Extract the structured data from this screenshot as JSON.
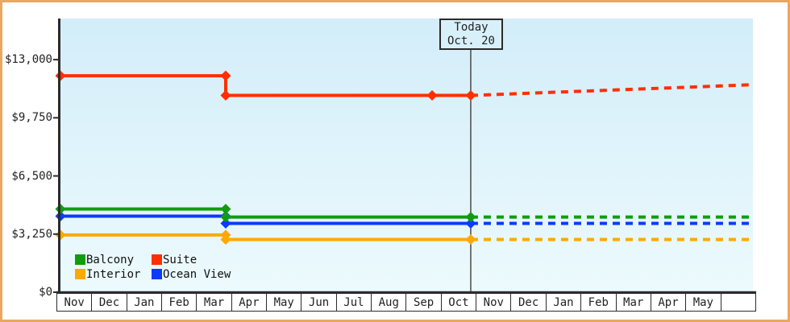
{
  "colors": {
    "page_border": "#e9a75f",
    "axis": "#2b2b2b",
    "today_line": "#4a4a4a",
    "plot_bg_top": "#d3edf9",
    "plot_bg_bottom": "#ecfafd",
    "text": "#222222",
    "today_box_bg": "#d8f0fa"
  },
  "chart_data": {
    "type": "line",
    "title": "",
    "xlabel": "",
    "ylabel": "",
    "note": "pos = horizontal fraction of plot area (0 = left edge at Nov, 1 = right edge past second May). Dashed segments are the projection beyond the Today (Oct. 20) marker.",
    "x_axis": {
      "categories": [
        "Nov",
        "Dec",
        "Jan",
        "Feb",
        "Mar",
        "Apr",
        "May",
        "Jun",
        "Jul",
        "Aug",
        "Sep",
        "Oct",
        "Nov",
        "Dec",
        "Jan",
        "Feb",
        "Mar",
        "Apr",
        "May",
        ""
      ]
    },
    "y_axis": {
      "range": [
        0,
        15300
      ],
      "ticks": [
        {
          "value": 13000,
          "label": "$13,000"
        },
        {
          "value": 9750,
          "label": "$9,750"
        },
        {
          "value": 6500,
          "label": "$6,500"
        },
        {
          "value": 3250,
          "label": "$3,250"
        },
        {
          "value": 0,
          "label": "$0"
        }
      ]
    },
    "today_marker": {
      "label": [
        "Today",
        "Oct. 20"
      ],
      "pos": 0.5925
    },
    "series": [
      {
        "name": "Interior",
        "color": "#ffa800",
        "solid_points": [
          {
            "pos": 0,
            "value": 3200
          },
          {
            "pos": 0.2386,
            "value": 3200
          },
          {
            "pos": 0.2386,
            "value": 2950
          },
          {
            "pos": 0.5925,
            "value": 2950
          }
        ],
        "dashed_points": [
          {
            "pos": 0.5925,
            "value": 2950
          },
          {
            "pos": 1,
            "value": 2950
          }
        ]
      },
      {
        "name": "Ocean View",
        "color": "#0a3bff",
        "solid_points": [
          {
            "pos": 0,
            "value": 4250
          },
          {
            "pos": 0.2386,
            "value": 4250
          },
          {
            "pos": 0.2386,
            "value": 3850
          },
          {
            "pos": 0.5925,
            "value": 3850
          }
        ],
        "dashed_points": [
          {
            "pos": 0.5925,
            "value": 3850
          },
          {
            "pos": 1,
            "value": 3850
          }
        ]
      },
      {
        "name": "Balcony",
        "color": "#0f9d0f",
        "solid_points": [
          {
            "pos": 0,
            "value": 4650
          },
          {
            "pos": 0.2386,
            "value": 4650
          },
          {
            "pos": 0.2386,
            "value": 4200
          },
          {
            "pos": 0.5925,
            "value": 4200
          }
        ],
        "dashed_points": [
          {
            "pos": 0.5925,
            "value": 4200
          },
          {
            "pos": 1,
            "value": 4200
          }
        ]
      },
      {
        "name": "Suite",
        "color": "#ff2f00",
        "solid_points": [
          {
            "pos": 0,
            "value": 12100
          },
          {
            "pos": 0.2386,
            "value": 12100
          },
          {
            "pos": 0.2386,
            "value": 11000
          },
          {
            "pos": 0.5367,
            "value": 11000
          },
          {
            "pos": 0.5925,
            "value": 11000
          }
        ],
        "dashed_points": [
          {
            "pos": 0.5925,
            "value": 11000
          },
          {
            "pos": 1,
            "value": 11600
          }
        ]
      }
    ],
    "legend": [
      {
        "label": "Balcony",
        "color": "#0f9d0f"
      },
      {
        "label": "Suite",
        "color": "#ff2f00"
      },
      {
        "label": "Interior",
        "color": "#ffa800"
      },
      {
        "label": "Ocean View",
        "color": "#0a3bff"
      }
    ],
    "legend_position": "bottom-left"
  }
}
